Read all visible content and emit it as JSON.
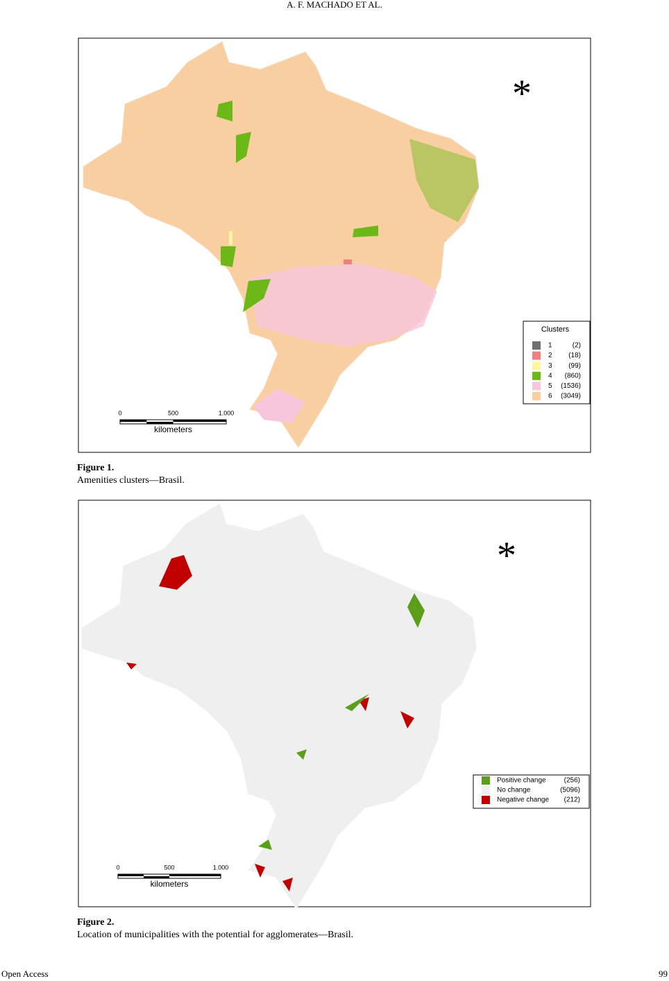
{
  "header": {
    "running_head": "A. F. MACHADO    ET    AL."
  },
  "figures": [
    {
      "marker": "*",
      "legend": {
        "title": "Clusters",
        "items": [
          {
            "label": "1",
            "count": "(2)"
          },
          {
            "label": "2",
            "count": "(18)"
          },
          {
            "label": "3",
            "count": "(99)"
          },
          {
            "label": "4",
            "count": "(860)"
          },
          {
            "label": "5",
            "count": "(1536)"
          },
          {
            "label": "6",
            "count": "(3049)"
          }
        ]
      },
      "scale": {
        "ticks": [
          "0",
          "500",
          "1.000"
        ],
        "unit": "kilometers"
      },
      "caption": {
        "label": "Figure 1.",
        "text": "Amenities clusters—Brasil."
      }
    },
    {
      "marker": "*",
      "legend": {
        "items": [
          {
            "label": "Positive change",
            "count": "(256)"
          },
          {
            "label": "No change",
            "count": "(5096)"
          },
          {
            "label": "Negative change",
            "count": "(212)"
          }
        ]
      },
      "scale": {
        "ticks": [
          "0",
          "500",
          "1.000"
        ],
        "unit": "kilometers"
      },
      "caption": {
        "label": "Figure 2.",
        "text": "Location of municipalities with the potential for agglomerates—Brasil."
      }
    }
  ],
  "footer": {
    "left": "Open Access",
    "right": "99"
  }
}
